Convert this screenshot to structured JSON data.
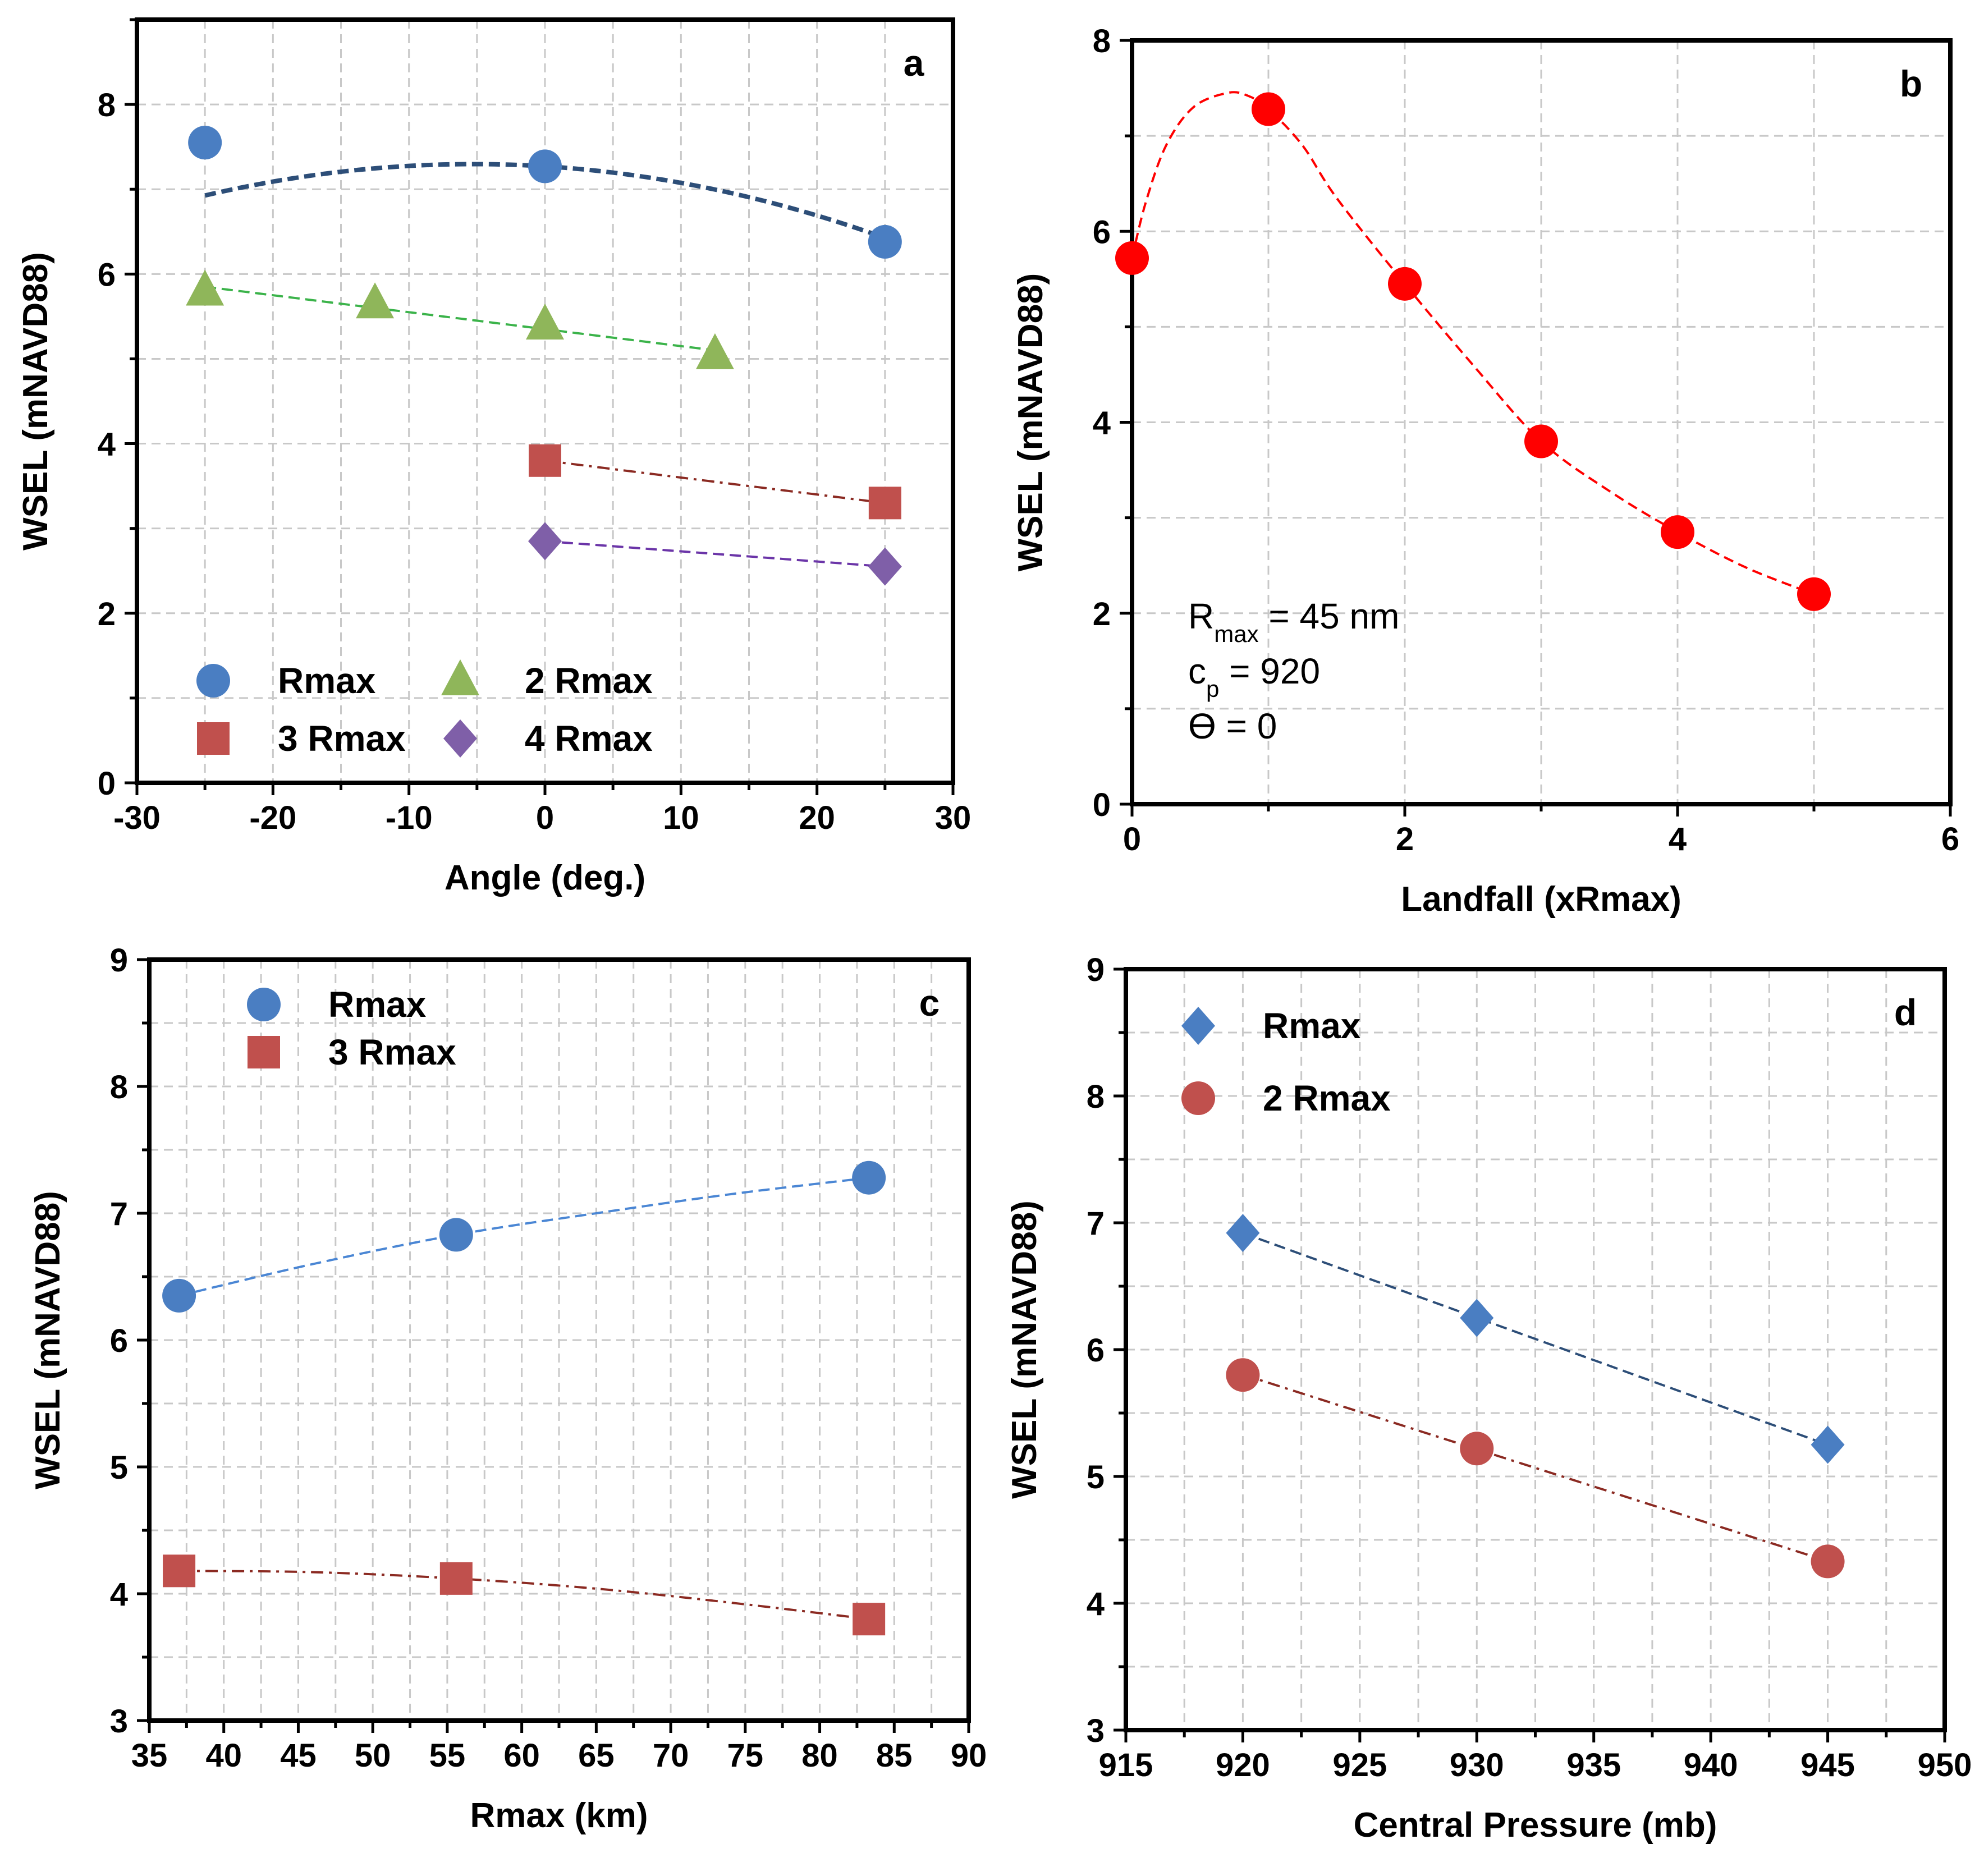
{
  "chart_data": [
    {
      "type": "scatter",
      "panel": "a",
      "title": "",
      "xlabel": "Angle (deg.)",
      "ylabel": "WSEL (mNAVD88)",
      "xlim": [
        -30,
        30
      ],
      "ylim": [
        0,
        9
      ],
      "xticks": [
        -30,
        -20,
        -10,
        0,
        10,
        20,
        30
      ],
      "yticks": [
        0,
        2,
        4,
        6,
        8
      ],
      "xminor": 5,
      "yminor": 1,
      "grid": true,
      "legend": "bottom-left",
      "legend_columns": 2,
      "series": [
        {
          "name": "Rmax",
          "marker": "circle",
          "color": "#4a7ec2",
          "line": "dash",
          "lineWidth": 8,
          "x": [
            -25,
            0,
            25
          ],
          "y": [
            7.55,
            7.27,
            6.38
          ]
        },
        {
          "name": "2 Rmax",
          "marker": "triangle",
          "color": "#8fb65a",
          "line": "dash",
          "lineWidth": 4,
          "x": [
            -25,
            -12.5,
            0,
            12.5
          ],
          "y": [
            5.8,
            5.65,
            5.4,
            5.05
          ]
        },
        {
          "name": "3 Rmax",
          "marker": "square",
          "color": "#c0504d",
          "lineColor": "#8b2a22",
          "line": "dashdot",
          "lineWidth": 4,
          "x": [
            0,
            25
          ],
          "y": [
            3.8,
            3.3
          ]
        },
        {
          "name": "4 Rmax",
          "marker": "diamond",
          "color": "#7f5fa8",
          "lineColor": "#6b35a8",
          "line": "dash",
          "lineWidth": 4,
          "x": [
            0,
            25
          ],
          "y": [
            2.85,
            2.55
          ]
        }
      ],
      "fit_lines": [
        {
          "series": "Rmax",
          "color": "#2d4e78",
          "type": "quadratic",
          "coef": [
            7.27,
            -0.01,
            -0.00095
          ],
          "x_range": [
            -25,
            25
          ]
        },
        {
          "series": "2 Rmax",
          "color": "#3bb34a",
          "type": "linear",
          "x_range": [
            -25,
            12.5
          ]
        },
        {
          "series": "3 Rmax",
          "color": "#8b2a22",
          "type": "linear",
          "x_range": [
            0,
            25
          ]
        },
        {
          "series": "4 Rmax",
          "color": "#6b35a8",
          "type": "linear",
          "x_range": [
            0,
            25
          ]
        }
      ]
    },
    {
      "type": "line",
      "panel": "b",
      "title": "",
      "xlabel": "Landfall (xRmax)",
      "ylabel": "WSEL (mNAVD88)",
      "xlim": [
        0,
        6
      ],
      "ylim": [
        0,
        8
      ],
      "xticks": [
        0,
        2,
        4,
        6
      ],
      "yticks": [
        0,
        2,
        4,
        6,
        8
      ],
      "xminor": 1,
      "yminor": 1,
      "grid": true,
      "series": [
        {
          "name": "WSEL",
          "marker": "circle",
          "color": "#ff0000",
          "line": "dash",
          "x": [
            0,
            1,
            2,
            3,
            4,
            5
          ],
          "y": [
            5.72,
            7.28,
            5.45,
            3.8,
            2.85,
            2.2
          ]
        }
      ],
      "smooth_curve": {
        "color": "#ff0000",
        "x": [
          0,
          0.1,
          0.25,
          0.45,
          0.7,
          0.85,
          1.0,
          1.25,
          1.5,
          2.0,
          2.5,
          3.0,
          3.5,
          4.0,
          4.5,
          5.0
        ],
        "y": [
          5.72,
          6.3,
          6.9,
          7.3,
          7.45,
          7.42,
          7.28,
          6.9,
          6.35,
          5.45,
          4.6,
          3.8,
          3.28,
          2.85,
          2.48,
          2.2
        ]
      },
      "annotations": [
        {
          "main": "R",
          "sub": "max",
          "rest": " = 45 nm"
        },
        {
          "main": "c",
          "sub": "p",
          "rest": " = 920"
        },
        {
          "main": "ϴ = 0",
          "sub": "",
          "rest": ""
        }
      ]
    },
    {
      "type": "scatter",
      "panel": "c",
      "title": "",
      "xlabel": "Rmax (km)",
      "ylabel": "WSEL (mNAVD88)",
      "xlim": [
        35,
        90
      ],
      "ylim": [
        3,
        9
      ],
      "xticks": [
        35,
        40,
        45,
        50,
        55,
        60,
        65,
        70,
        75,
        80,
        85,
        90
      ],
      "yticks": [
        3,
        4,
        5,
        6,
        7,
        8,
        9
      ],
      "xminor": 2.5,
      "yminor": 0.5,
      "grid": true,
      "legend": "top-left",
      "legend_columns": 1,
      "series": [
        {
          "name": "Rmax",
          "marker": "circle",
          "color": "#4a7ec2",
          "line": "dash",
          "x": [
            37,
            55.6,
            83.3
          ],
          "y": [
            6.35,
            6.83,
            7.28
          ]
        },
        {
          "name": "3 Rmax",
          "marker": "square",
          "color": "#c0504d",
          "line": "dashdot",
          "x": [
            37,
            55.6,
            83.3
          ],
          "y": [
            4.18,
            4.12,
            3.8
          ]
        }
      ],
      "fit_lines": [
        {
          "series": "Rmax",
          "color": "#4a86d4",
          "type": "curve",
          "x": [
            37,
            46,
            55.6,
            65,
            74,
            83.3
          ],
          "y": [
            6.35,
            6.6,
            6.83,
            7.0,
            7.15,
            7.28
          ]
        },
        {
          "series": "3 Rmax",
          "color": "#8b2a22",
          "type": "curve",
          "x": [
            37,
            46,
            55.6,
            65,
            74,
            83.3
          ],
          "y": [
            4.18,
            4.17,
            4.12,
            4.04,
            3.93,
            3.8
          ]
        }
      ]
    },
    {
      "type": "scatter",
      "panel": "d",
      "title": "",
      "xlabel": "Central Pressure (mb)",
      "ylabel": "WSEL (mNAVD88)",
      "xlim": [
        915,
        950
      ],
      "ylim": [
        3,
        9
      ],
      "xticks": [
        915,
        920,
        925,
        930,
        935,
        940,
        945,
        950
      ],
      "yticks": [
        3,
        4,
        5,
        6,
        7,
        8,
        9
      ],
      "xminor": 2.5,
      "yminor": 0.5,
      "grid": true,
      "legend": "top-left",
      "legend_columns": 1,
      "series": [
        {
          "name": "Rmax",
          "marker": "diamond",
          "color": "#4a7ec2",
          "line": "dash",
          "x": [
            920,
            930,
            945
          ],
          "y": [
            6.92,
            6.25,
            5.25
          ]
        },
        {
          "name": "2 Rmax",
          "marker": "circle",
          "color": "#c0504d",
          "line": "dashdot",
          "x": [
            920,
            930,
            945
          ],
          "y": [
            5.8,
            5.22,
            4.33
          ]
        }
      ],
      "fit_lines": [
        {
          "series": "Rmax",
          "color": "#2d4e78",
          "type": "linear",
          "x_range": [
            920,
            945
          ]
        },
        {
          "series": "2 Rmax",
          "color": "#8b2a22",
          "type": "linear",
          "x_range": [
            920,
            945
          ]
        }
      ]
    }
  ]
}
